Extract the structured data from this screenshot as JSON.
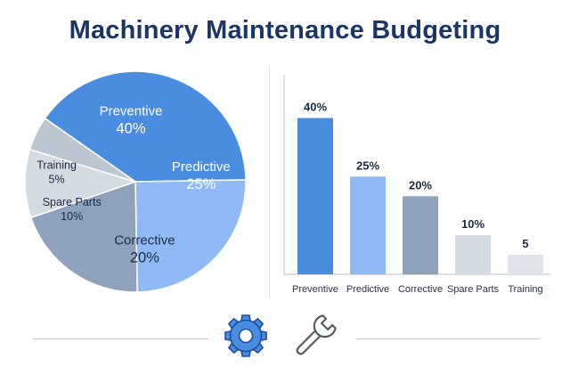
{
  "title": "Machinery Maintenance Budgeting",
  "colors": {
    "title": "#1a3566",
    "preventive": "#4a8de0",
    "predictive": "#8fbaf5",
    "corrective": "#8ea3bb",
    "spare_parts": "#d5dbe3",
    "training": "#bcc6d2",
    "dark_text": "#1c2b45",
    "white_text": "#ffffff"
  },
  "icons": [
    "gear-icon",
    "wrench-icon"
  ],
  "chart_data": [
    {
      "type": "pie",
      "slices": [
        {
          "name": "Preventive",
          "value": 40,
          "label": "40%"
        },
        {
          "name": "Predictive",
          "value": 25,
          "label": "25%"
        },
        {
          "name": "Corrective",
          "value": 20,
          "label": "20%"
        },
        {
          "name": "Spare Parts",
          "value": 10,
          "label": "10%"
        },
        {
          "name": "Training",
          "value": 5,
          "label": "5%"
        }
      ]
    },
    {
      "type": "bar",
      "categories": [
        "Preventive",
        "Predictive",
        "Corrective",
        "Spare Parts",
        "Training"
      ],
      "values": [
        40,
        25,
        20,
        10,
        5
      ],
      "value_labels": [
        "40%",
        "25%",
        "20%",
        "10%",
        "5"
      ],
      "ylim": [
        0,
        45
      ],
      "grid": false
    }
  ]
}
